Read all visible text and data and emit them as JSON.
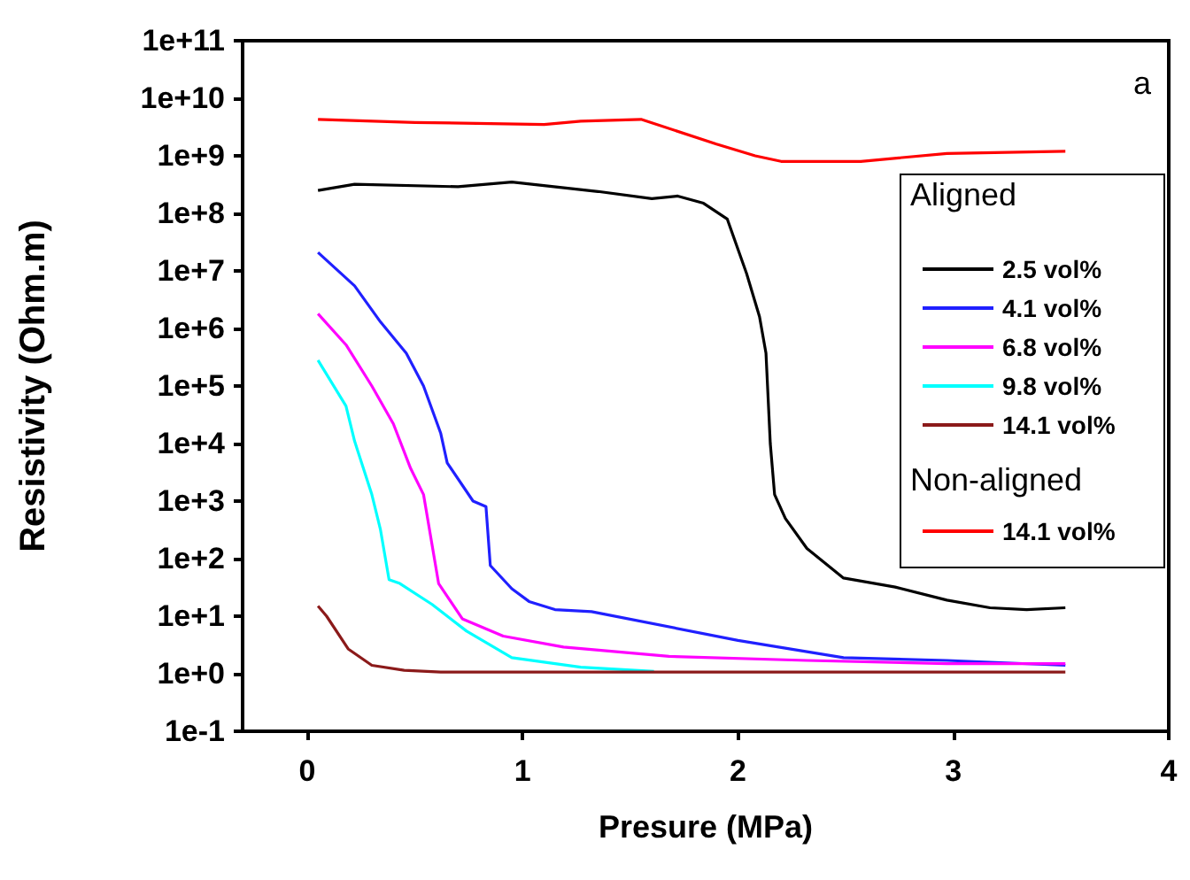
{
  "chart_data": {
    "type": "line",
    "xlabel": "Presure (MPa)",
    "ylabel": "Resistivity (Ohm.m)",
    "legend_title": "Aligned",
    "annotations": [
      "a",
      "Non-aligned"
    ],
    "log": "y",
    "grid": false,
    "legend": "right",
    "xlim": [
      -0.3,
      4
    ],
    "xticks": [
      0,
      1,
      2,
      3,
      4
    ],
    "ylim": [
      0.1,
      100000000000
    ],
    "yticks": [
      {
        "value": 0.1,
        "label": "1e-1"
      },
      {
        "value": 1,
        "label": "1e+0"
      },
      {
        "value": 10,
        "label": "1e+1"
      },
      {
        "value": 100,
        "label": "1e+2"
      },
      {
        "value": 1000,
        "label": "1e+3"
      },
      {
        "value": 10000,
        "label": "1e+4"
      },
      {
        "value": 100000,
        "label": "1e+5"
      },
      {
        "value": 1000000,
        "label": "1e+6"
      },
      {
        "value": 10000000,
        "label": "1e+7"
      },
      {
        "value": 100000000,
        "label": "1e+8"
      },
      {
        "value": 1000000000,
        "label": "1e+9"
      },
      {
        "value": 10000000000,
        "label": "1e+10"
      },
      {
        "value": 100000000000,
        "label": "1e+11"
      }
    ],
    "series": [
      {
        "name": "2.5 vol%",
        "color": "#000000",
        "x": [
          0.05,
          0.22,
          0.7,
          0.95,
          1.35,
          1.6,
          1.72,
          1.84,
          1.95,
          2.04,
          2.1,
          2.13,
          2.15,
          2.17,
          2.22,
          2.32,
          2.49,
          2.73,
          2.97,
          3.17,
          3.34,
          3.52
        ],
        "values": [
          250000000,
          320000000,
          290000000,
          350000000,
          240000000,
          180000000,
          200000000,
          150000000,
          80000000,
          9000000,
          1600000,
          370000,
          10000,
          1300,
          500,
          150,
          46,
          32,
          19,
          14,
          13,
          14
        ]
      },
      {
        "name": "4.1 vol%",
        "color": "#2020ff",
        "x": [
          0.05,
          0.22,
          0.34,
          0.46,
          0.54,
          0.62,
          0.65,
          0.77,
          0.83,
          0.85,
          0.95,
          1.03,
          1.15,
          1.32,
          2.0,
          2.49,
          2.97,
          3.52
        ],
        "values": [
          21000000,
          5500000,
          1300000,
          370000,
          100000,
          15000,
          4600,
          1000,
          800,
          76,
          30,
          18,
          13,
          12,
          3.8,
          1.9,
          1.7,
          1.4
        ]
      },
      {
        "name": "6.8 vol%",
        "color": "#ff00ff",
        "x": [
          0.05,
          0.18,
          0.3,
          0.4,
          0.48,
          0.54,
          0.61,
          0.72,
          0.91,
          1.19,
          1.68,
          2.32,
          2.97,
          3.52
        ],
        "values": [
          1800000,
          520000,
          100000,
          22000,
          3700,
          1300,
          37,
          9,
          4.5,
          2.9,
          2,
          1.7,
          1.5,
          1.5
        ]
      },
      {
        "name": "9.8 vol%",
        "color": "#00ffff",
        "x": [
          0.05,
          0.18,
          0.22,
          0.3,
          0.34,
          0.38,
          0.43,
          0.58,
          0.74,
          0.95,
          1.27,
          1.61
        ],
        "values": [
          280000,
          45000,
          11000,
          1300,
          320,
          43,
          37,
          16,
          5.5,
          1.9,
          1.3,
          1.1
        ]
      },
      {
        "name": "14.1 vol%",
        "color": "#8b1a1a",
        "x": [
          0.05,
          0.09,
          0.19,
          0.3,
          0.45,
          0.62,
          3.52
        ],
        "values": [
          15,
          10,
          2.7,
          1.4,
          1.15,
          1.07,
          1.07
        ]
      },
      {
        "name": "14.1 vol%",
        "color": "#ff0000",
        "x": [
          0.05,
          0.5,
          1.1,
          1.27,
          1.55,
          1.9,
          2.08,
          2.2,
          2.57,
          2.97,
          3.52
        ],
        "values": [
          4300000000,
          3800000000,
          3500000000,
          4000000000,
          4300000000,
          1600000000,
          1000000000,
          800000000,
          800000000,
          1100000000,
          1200000000
        ]
      }
    ]
  }
}
